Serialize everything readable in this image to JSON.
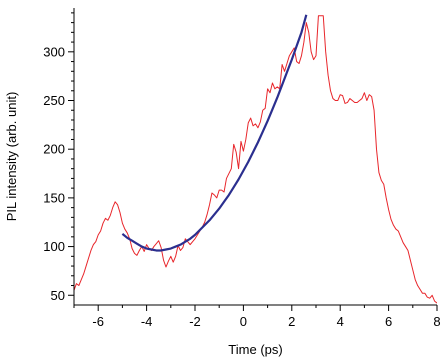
{
  "chart_data": {
    "type": "line",
    "title": "",
    "xlabel": "Time (ps)",
    "ylabel": "PIL intensity (arb. unit)",
    "xlim": [
      -7,
      8
    ],
    "ylim": [
      40,
      345
    ],
    "x_ticks": [
      -6,
      -4,
      -2,
      0,
      2,
      4,
      6,
      8
    ],
    "y_ticks": [
      50,
      100,
      150,
      200,
      250,
      300
    ],
    "grid": false,
    "legend": "none",
    "series": [
      {
        "color": "#e8262b",
        "style": "line",
        "x": [
          -7.0,
          -6.9,
          -6.8,
          -6.7,
          -6.6,
          -6.5,
          -6.4,
          -6.3,
          -6.2,
          -6.1,
          -6.0,
          -5.9,
          -5.8,
          -5.7,
          -5.6,
          -5.5,
          -5.4,
          -5.3,
          -5.2,
          -5.1,
          -5.0,
          -4.9,
          -4.8,
          -4.7,
          -4.6,
          -4.5,
          -4.4,
          -4.3,
          -4.2,
          -4.1,
          -4.0,
          -3.9,
          -3.8,
          -3.7,
          -3.6,
          -3.5,
          -3.4,
          -3.3,
          -3.2,
          -3.1,
          -3.0,
          -2.9,
          -2.8,
          -2.7,
          -2.6,
          -2.5,
          -2.4,
          -2.3,
          -2.2,
          -2.1,
          -2.0,
          -1.9,
          -1.8,
          -1.7,
          -1.6,
          -1.5,
          -1.4,
          -1.3,
          -1.2,
          -1.1,
          -1.0,
          -0.9,
          -0.8,
          -0.7,
          -0.6,
          -0.5,
          -0.4,
          -0.3,
          -0.2,
          -0.1,
          0.0,
          0.1,
          0.2,
          0.3,
          0.4,
          0.5,
          0.6,
          0.7,
          0.8,
          0.9,
          1.0,
          1.1,
          1.2,
          1.3,
          1.4,
          1.5,
          1.6,
          1.7,
          1.8,
          1.9,
          2.0,
          2.1,
          2.2,
          2.3,
          2.4,
          2.5,
          2.6,
          2.7,
          2.8,
          2.9,
          3.0,
          3.1,
          3.2,
          3.3,
          3.4,
          3.5,
          3.6,
          3.7,
          3.8,
          3.9,
          4.0,
          4.1,
          4.2,
          4.3,
          4.4,
          4.5,
          4.6,
          4.7,
          4.8,
          4.9,
          5.0,
          5.1,
          5.2,
          5.3,
          5.4,
          5.5,
          5.6,
          5.7,
          5.8,
          5.9,
          6.0,
          6.1,
          6.2,
          6.3,
          6.4,
          6.5,
          6.6,
          6.7,
          6.8,
          6.9,
          7.0,
          7.1,
          7.2,
          7.3,
          7.4,
          7.5,
          7.6,
          7.7,
          7.8,
          7.9,
          8.0
        ],
        "y": [
          55,
          62,
          60,
          66,
          72,
          80,
          88,
          96,
          102,
          105,
          112,
          116,
          124,
          129,
          127,
          132,
          140,
          146,
          143,
          135,
          124,
          118,
          114,
          108,
          98,
          93,
          91,
          96,
          100,
          95,
          102,
          98,
          96,
          100,
          103,
          106,
          99,
          86,
          79,
          85,
          90,
          84,
          90,
          101,
          96,
          99,
          108,
          105,
          102,
          105,
          108,
          112,
          116,
          120,
          125,
          133,
          143,
          155,
          153,
          150,
          158,
          158,
          156,
          170,
          175,
          180,
          205,
          197,
          180,
          208,
          198,
          210,
          227,
          232,
          224,
          226,
          222,
          228,
          240,
          242,
          262,
          258,
          268,
          262,
          264,
          262,
          287,
          280,
          288,
          296,
          300,
          304,
          290,
          288,
          296,
          310,
          330,
          320,
          300,
          292,
          296,
          337,
          337,
          337,
          300,
          276,
          260,
          252,
          250,
          250,
          256,
          255,
          247,
          248,
          252,
          250,
          248,
          248,
          250,
          252,
          258,
          250,
          256,
          254,
          240,
          200,
          176,
          168,
          164,
          150,
          138,
          128,
          122,
          118,
          116,
          110,
          104,
          100,
          96,
          86,
          76,
          66,
          60,
          56,
          52,
          52,
          48,
          47,
          50,
          44,
          42
        ],
        "name": ""
      },
      {
        "color": "#2b2f8f",
        "style": "smooth",
        "x": [
          -5.0,
          -4.8,
          -4.6,
          -4.4,
          -4.2,
          -4.0,
          -3.8,
          -3.6,
          -3.4,
          -3.2,
          -3.0,
          -2.8,
          -2.6,
          -2.4,
          -2.2,
          -2.0,
          -1.8,
          -1.6,
          -1.4,
          -1.2,
          -1.0,
          -0.8,
          -0.6,
          -0.4,
          -0.2,
          0.0,
          0.2,
          0.4,
          0.6,
          0.8,
          1.0,
          1.2,
          1.4,
          1.6,
          1.8,
          2.0,
          2.2,
          2.4,
          2.6
        ],
        "y": [
          113,
          109,
          106,
          103,
          100,
          98,
          97,
          96,
          96,
          97,
          98,
          100,
          102,
          105,
          108,
          112,
          117,
          122,
          127,
          133,
          139,
          146,
          153,
          161,
          169,
          178,
          187,
          197,
          207,
          218,
          229,
          241,
          253,
          266,
          279,
          292,
          306,
          320,
          338
        ],
        "name": ""
      }
    ]
  }
}
